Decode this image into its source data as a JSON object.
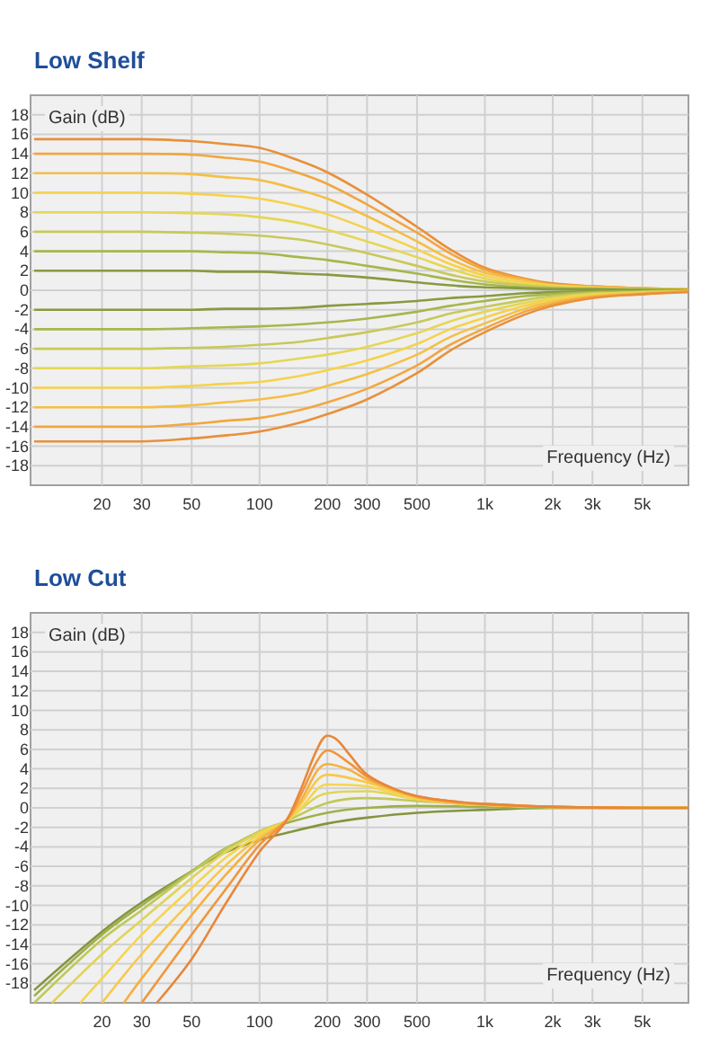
{
  "chart_data": [
    {
      "type": "line",
      "title": "Low Shelf",
      "xlabel": "Frequency (Hz)",
      "ylabel": "Gain (dB)",
      "log": "x",
      "grid": true,
      "xlim": [
        10,
        8000
      ],
      "ylim": [
        -20,
        20
      ],
      "xticks": [
        20,
        30,
        50,
        100,
        200,
        300,
        500,
        {
          "value": 1000,
          "label": "1k"
        },
        {
          "value": 2000,
          "label": "2k"
        },
        {
          "value": 3000,
          "label": "3k"
        },
        {
          "value": 5000,
          "label": "5k"
        }
      ],
      "yticks": [
        -18,
        -16,
        -14,
        -12,
        -10,
        -8,
        -6,
        -4,
        -2,
        0,
        2,
        4,
        6,
        8,
        10,
        12,
        14,
        16,
        18
      ],
      "x": [
        10,
        20,
        30,
        50,
        70,
        100,
        150,
        200,
        300,
        500,
        700,
        1000,
        1500,
        2000,
        3000,
        5000,
        8000
      ],
      "series": [
        {
          "color": "#e8903a",
          "values": [
            15.5,
            15.5,
            15.5,
            15.3,
            15,
            14.6,
            13.3,
            12.1,
            9.8,
            6.5,
            4.2,
            2.3,
            1.2,
            0.7,
            0.4,
            0.2,
            0.1
          ]
        },
        {
          "color": "#f2a640",
          "values": [
            14,
            14,
            14,
            13.9,
            13.6,
            13.2,
            12,
            10.9,
            8.8,
            5.9,
            3.8,
            2.1,
            1.1,
            0.6,
            0.4,
            0.2,
            0.1
          ]
        },
        {
          "color": "#f5bf45",
          "values": [
            12,
            12,
            12,
            11.9,
            11.6,
            11.3,
            10.3,
            9.4,
            7.6,
            5,
            3.2,
            1.8,
            1,
            0.5,
            0.3,
            0.2,
            0.1
          ]
        },
        {
          "color": "#f6d24a",
          "values": [
            10,
            10,
            10,
            9.9,
            9.7,
            9.4,
            8.6,
            7.8,
            6.3,
            4.2,
            2.7,
            1.5,
            0.8,
            0.5,
            0.3,
            0.1,
            0.1
          ]
        },
        {
          "color": "#e6d655",
          "values": [
            8,
            8,
            8,
            7.9,
            7.8,
            7.5,
            6.9,
            6.2,
            5,
            3.4,
            2.2,
            1.2,
            0.6,
            0.4,
            0.2,
            0.1,
            0
          ]
        },
        {
          "color": "#c8c95a",
          "values": [
            6,
            6,
            6,
            5.9,
            5.8,
            5.6,
            5.2,
            4.7,
            3.8,
            2.5,
            1.6,
            0.9,
            0.5,
            0.3,
            0.2,
            0.1,
            0
          ]
        },
        {
          "color": "#a8b64c",
          "values": [
            4,
            4,
            4,
            4,
            3.9,
            3.8,
            3.4,
            3.1,
            2.5,
            1.7,
            1.1,
            0.6,
            0.3,
            0.2,
            0.1,
            0.1,
            0
          ]
        },
        {
          "color": "#889a40",
          "values": [
            2,
            2,
            2,
            2,
            1.9,
            1.9,
            1.7,
            1.6,
            1.3,
            0.8,
            0.5,
            0.3,
            0.2,
            0.1,
            0.1,
            0,
            0
          ]
        },
        {
          "color": "#889a40",
          "values": [
            -2,
            -2,
            -2,
            -2,
            -1.9,
            -1.9,
            -1.8,
            -1.6,
            -1.4,
            -1.1,
            -0.8,
            -0.6,
            -0.3,
            -0.2,
            -0.1,
            0,
            0
          ]
        },
        {
          "color": "#a8b64c",
          "values": [
            -4,
            -4,
            -4,
            -3.9,
            -3.8,
            -3.7,
            -3.5,
            -3.3,
            -2.9,
            -2.2,
            -1.6,
            -1.1,
            -0.6,
            -0.4,
            -0.2,
            -0.1,
            0
          ]
        },
        {
          "color": "#c8c95a",
          "values": [
            -6,
            -6,
            -6,
            -5.9,
            -5.8,
            -5.6,
            -5.3,
            -4.9,
            -4.3,
            -3.3,
            -2.4,
            -1.7,
            -1,
            -0.6,
            -0.3,
            -0.2,
            -0.1
          ]
        },
        {
          "color": "#e6d655",
          "values": [
            -8,
            -8,
            -8,
            -7.8,
            -7.7,
            -7.5,
            -7,
            -6.6,
            -5.8,
            -4.4,
            -3.2,
            -2.2,
            -1.3,
            -0.8,
            -0.4,
            -0.2,
            -0.1
          ]
        },
        {
          "color": "#f6d24a",
          "values": [
            -10,
            -10,
            -10,
            -9.8,
            -9.6,
            -9.4,
            -8.8,
            -8.2,
            -7.2,
            -5.5,
            -4,
            -2.8,
            -1.6,
            -1,
            -0.5,
            -0.3,
            -0.1
          ]
        },
        {
          "color": "#f5bf45",
          "values": [
            -12,
            -12,
            -12,
            -11.8,
            -11.5,
            -11.2,
            -10.6,
            -9.8,
            -8.6,
            -6.6,
            -4.8,
            -3.4,
            -1.9,
            -1.2,
            -0.6,
            -0.3,
            -0.1
          ]
        },
        {
          "color": "#f2a640",
          "values": [
            -14,
            -14,
            -14,
            -13.7,
            -13.4,
            -13.1,
            -12.3,
            -11.5,
            -10.1,
            -7.7,
            -5.6,
            -3.9,
            -2.2,
            -1.4,
            -0.7,
            -0.4,
            -0.1
          ]
        },
        {
          "color": "#e8903a",
          "values": [
            -15.5,
            -15.5,
            -15.5,
            -15.2,
            -14.9,
            -14.5,
            -13.6,
            -12.7,
            -11.2,
            -8.5,
            -6.2,
            -4.3,
            -2.5,
            -1.6,
            -0.8,
            -0.4,
            -0.2
          ]
        }
      ]
    },
    {
      "type": "line",
      "title": "Low Cut",
      "xlabel": "Frequency (Hz)",
      "ylabel": "Gain (dB)",
      "log": "x",
      "grid": true,
      "xlim": [
        10,
        8000
      ],
      "ylim": [
        -20,
        20
      ],
      "xticks": [
        20,
        30,
        50,
        100,
        200,
        300,
        500,
        {
          "value": 1000,
          "label": "1k"
        },
        {
          "value": 2000,
          "label": "2k"
        },
        {
          "value": 3000,
          "label": "3k"
        },
        {
          "value": 5000,
          "label": "5k"
        }
      ],
      "yticks": [
        -18,
        -16,
        -14,
        -12,
        -10,
        -8,
        -6,
        -4,
        -2,
        0,
        2,
        4,
        6,
        8,
        10,
        12,
        14,
        16,
        18
      ],
      "series": [
        {
          "color": "#849540",
          "x": [
            10,
            20,
            30,
            50,
            70,
            100,
            130,
            200,
            300,
            500,
            1000,
            2000,
            5000,
            8000
          ],
          "values": [
            -18.7,
            -12.7,
            -9.7,
            -6.5,
            -4.6,
            -3.3,
            -2.6,
            -1.6,
            -1,
            -0.5,
            -0.2,
            0,
            0,
            0
          ]
        },
        {
          "color": "#9fb04a",
          "x": [
            10,
            20,
            30,
            50,
            70,
            100,
            130,
            200,
            300,
            500,
            1000,
            2000,
            5000,
            8000
          ],
          "values": [
            -19.3,
            -13,
            -10,
            -6.5,
            -4.2,
            -2.6,
            -1.6,
            -0.5,
            0,
            0.2,
            0.1,
            0,
            0,
            0
          ]
        },
        {
          "color": "#c2c858",
          "x": [
            10,
            20,
            30,
            50,
            70,
            100,
            130,
            200,
            300,
            500,
            1000,
            2000,
            5000,
            8000
          ],
          "values": [
            -20,
            -13.5,
            -10.5,
            -6.6,
            -4.3,
            -2.4,
            -1.4,
            0.5,
            1,
            0.7,
            0.3,
            0.1,
            0,
            0
          ]
        },
        {
          "color": "#e0d458",
          "x": [
            12,
            20,
            30,
            50,
            70,
            100,
            130,
            200,
            300,
            500,
            1000,
            2000,
            5000,
            8000
          ],
          "values": [
            -20,
            -15,
            -11.5,
            -7.2,
            -4.6,
            -2.5,
            -1.4,
            1.5,
            1.7,
            0.9,
            0.3,
            0.1,
            0,
            0
          ]
        },
        {
          "color": "#f5d550",
          "x": [
            16,
            20,
            30,
            50,
            70,
            100,
            130,
            150,
            200,
            300,
            500,
            1000,
            2000,
            5000,
            8000
          ],
          "values": [
            -20,
            -17.5,
            -13,
            -8.2,
            -5.2,
            -2.7,
            -1.4,
            -0.2,
            2.4,
            2.2,
            0.9,
            0.3,
            0.1,
            0,
            0
          ]
        },
        {
          "color": "#f8c848",
          "x": [
            20,
            30,
            50,
            70,
            100,
            130,
            150,
            200,
            300,
            500,
            700,
            1000,
            2000,
            5000,
            8000
          ],
          "values": [
            -20,
            -15,
            -9.5,
            -6,
            -3,
            -1.4,
            0.2,
            3.4,
            2.6,
            1,
            0.5,
            0.3,
            0.1,
            0,
            0
          ]
        },
        {
          "color": "#f5b040",
          "x": [
            25,
            30,
            50,
            70,
            100,
            130,
            150,
            200,
            250,
            300,
            500,
            700,
            1000,
            2000,
            5000,
            8000
          ],
          "values": [
            -20,
            -17.5,
            -11,
            -7,
            -3.3,
            -1.4,
            0.5,
            4.5,
            3.9,
            2.9,
            1.1,
            0.6,
            0.3,
            0.1,
            0,
            0
          ]
        },
        {
          "color": "#f0963c",
          "x": [
            30,
            50,
            70,
            100,
            130,
            150,
            180,
            200,
            250,
            300,
            400,
            500,
            700,
            1000,
            2000,
            5000,
            8000
          ],
          "values": [
            -20,
            -13,
            -8.5,
            -3.8,
            -1.4,
            1,
            4.8,
            5.9,
            4.6,
            3.2,
            1.9,
            1.2,
            0.7,
            0.4,
            0.1,
            0,
            0
          ]
        },
        {
          "color": "#e8873a",
          "x": [
            35,
            50,
            70,
            100,
            130,
            150,
            180,
            200,
            220,
            250,
            300,
            400,
            500,
            700,
            1000,
            2000,
            5000,
            8000
          ],
          "values": [
            -20,
            -15.5,
            -10,
            -4.5,
            -1.5,
            1.5,
            6,
            7.4,
            7,
            5.5,
            3.4,
            1.9,
            1.2,
            0.7,
            0.4,
            0.1,
            0,
            0
          ]
        }
      ]
    }
  ]
}
